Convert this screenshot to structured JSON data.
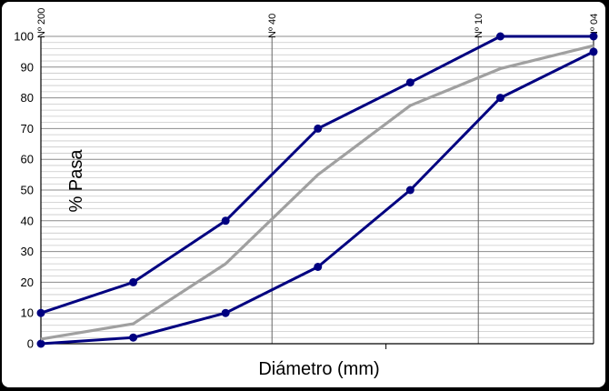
{
  "chart_data": {
    "type": "line",
    "title": "",
    "xlabel": "Diámetro (mm)",
    "ylabel": "% Pasa",
    "xscale": "log",
    "ylim": [
      0,
      100
    ],
    "yticks": [
      "0",
      "10",
      "20",
      "30",
      "40",
      "50",
      "60",
      "70",
      "80",
      "90",
      "100"
    ],
    "sieves": [
      {
        "label": "Nº 200",
        "x": 0.075
      },
      {
        "label": "Nº 40",
        "x": 0.425
      },
      {
        "label": "Nº 10",
        "x": 2.0
      },
      {
        "label": "Nº 04",
        "x": 4.75
      }
    ],
    "xlim": [
      0.075,
      4.75
    ],
    "grid": "horizontal minor + vertical at sieves",
    "legend": "none",
    "series": [
      {
        "color": "#000080",
        "markers": true,
        "points": [
          [
            0.075,
            10
          ],
          [
            0.15,
            20
          ],
          [
            0.3,
            40
          ],
          [
            0.6,
            70
          ],
          [
            1.2,
            85
          ],
          [
            2.36,
            100
          ],
          [
            4.75,
            100
          ]
        ]
      },
      {
        "color": "#000080",
        "markers": true,
        "points": [
          [
            0.075,
            0
          ],
          [
            0.15,
            2
          ],
          [
            0.3,
            10
          ],
          [
            0.6,
            25
          ],
          [
            1.2,
            50
          ],
          [
            2.36,
            80
          ],
          [
            4.75,
            95
          ]
        ]
      },
      {
        "color": "#a0a0a0",
        "markers": false,
        "points": [
          [
            0.075,
            1.5
          ],
          [
            0.15,
            6.5
          ],
          [
            0.3,
            26
          ],
          [
            0.6,
            55
          ],
          [
            1.2,
            77.5
          ],
          [
            2.36,
            89.5
          ],
          [
            4.75,
            97
          ]
        ]
      }
    ]
  }
}
